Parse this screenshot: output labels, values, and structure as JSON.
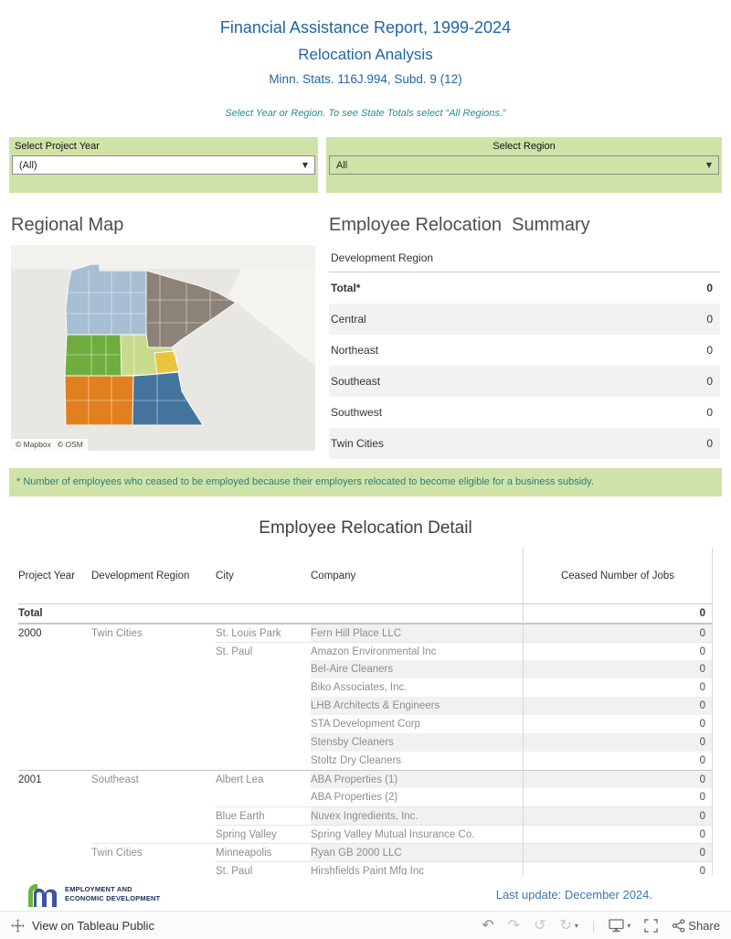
{
  "header": {
    "title_line1": "Financial Assistance Report, 1999-2024",
    "title_line2": "Relocation Analysis",
    "title_line3": "Minn. Stats.  116J.994, Subd. 9 (12)",
    "hint": "Select Year or Region. To see State Totals select “All Regions.”"
  },
  "filters": {
    "year": {
      "label": "Select Project Year",
      "value": "(All)"
    },
    "region": {
      "label": "Select Region",
      "value": "All"
    }
  },
  "icons": {
    "dropdown_caret": "▼",
    "undo": "↶",
    "redo": "↷",
    "reset": "↺",
    "history": "↻",
    "mini_caret": "▾",
    "separator": "|"
  },
  "map": {
    "title": "Regional Map",
    "attribution_mapbox": "© Mapbox",
    "attribution_osm": "© OSM",
    "region_colors": {
      "northwest": "#a7bfd3",
      "northeast": "#8d8277",
      "west-central": "#6fae3e",
      "central": "#c9db8e",
      "twin-cities": "#e9c53d",
      "southwest": "#e1801f",
      "southeast": "#44749e"
    }
  },
  "summary": {
    "title": "Employee Relocation  Summary",
    "column_header": "Development Region",
    "rows": [
      {
        "label": "Total*",
        "value": "0",
        "bold": true
      },
      {
        "label": "Central",
        "value": "0"
      },
      {
        "label": "Northeast",
        "value": "0"
      },
      {
        "label": "Southeast",
        "value": "0"
      },
      {
        "label": "Southwest",
        "value": "0"
      },
      {
        "label": "Twin Cities",
        "value": "0"
      }
    ]
  },
  "note": "* Number of employees who ceased to be employed because their employers relocated to become eligible for a business subsidy.",
  "detail": {
    "title": "Employee Relocation Detail",
    "columns": [
      "Project Year",
      "Development Region",
      "City",
      "Company",
      "Ceased Number of Jobs"
    ],
    "total_label": "Total",
    "total_value": "0",
    "rows": [
      {
        "year": "2000",
        "region": "Twin Cities",
        "city": "St. Louis Park",
        "company": "Fern Hill Place LLC",
        "jobs": "0",
        "border": "year"
      },
      {
        "year": "",
        "region": "",
        "city": "St. Paul",
        "company": "Amazon Environmental Inc",
        "jobs": "0",
        "border": "city"
      },
      {
        "year": "",
        "region": "",
        "city": "",
        "company": "Bel-Aire Cleaners",
        "jobs": "0"
      },
      {
        "year": "",
        "region": "",
        "city": "",
        "company": "Biko Associates, Inc.",
        "jobs": "0"
      },
      {
        "year": "",
        "region": "",
        "city": "",
        "company": "LHB Architects & Engineers",
        "jobs": "0"
      },
      {
        "year": "",
        "region": "",
        "city": "",
        "company": "STA Development Corp",
        "jobs": "0"
      },
      {
        "year": "",
        "region": "",
        "city": "",
        "company": "Stensby Cleaners",
        "jobs": "0"
      },
      {
        "year": "",
        "region": "",
        "city": "",
        "company": "Stoltz Dry Cleaners",
        "jobs": "0"
      },
      {
        "year": "2001",
        "region": "Southeast",
        "city": "Albert Lea",
        "company": "ABA Properties (1)",
        "jobs": "0",
        "border": "year"
      },
      {
        "year": "",
        "region": "",
        "city": "",
        "company": "ABA Properties (2)",
        "jobs": "0"
      },
      {
        "year": "",
        "region": "",
        "city": "Blue Earth",
        "company": "Nuvex Ingredients, Inc.",
        "jobs": "0",
        "border": "city"
      },
      {
        "year": "",
        "region": "",
        "city": "Spring Valley",
        "company": "Spring Valley Mutual Insurance Co.",
        "jobs": "0",
        "border": "city"
      },
      {
        "year": "",
        "region": "Twin Cities",
        "city": "Minneapolis",
        "company": "Ryan GB 2000 LLC",
        "jobs": "0",
        "border": "region"
      },
      {
        "year": "",
        "region": "",
        "city": "St. Paul",
        "company": "Hirshfields Paint Mfg Inc",
        "jobs": "0",
        "border": "city"
      }
    ]
  },
  "footer": {
    "logo_line1": "EMPLOYMENT AND",
    "logo_line2": "ECONOMIC DEVELOPMENT",
    "last_update": "Last update: December 2024."
  },
  "toolbar": {
    "view_label": "View on Tableau Public",
    "share_label": "Share"
  }
}
